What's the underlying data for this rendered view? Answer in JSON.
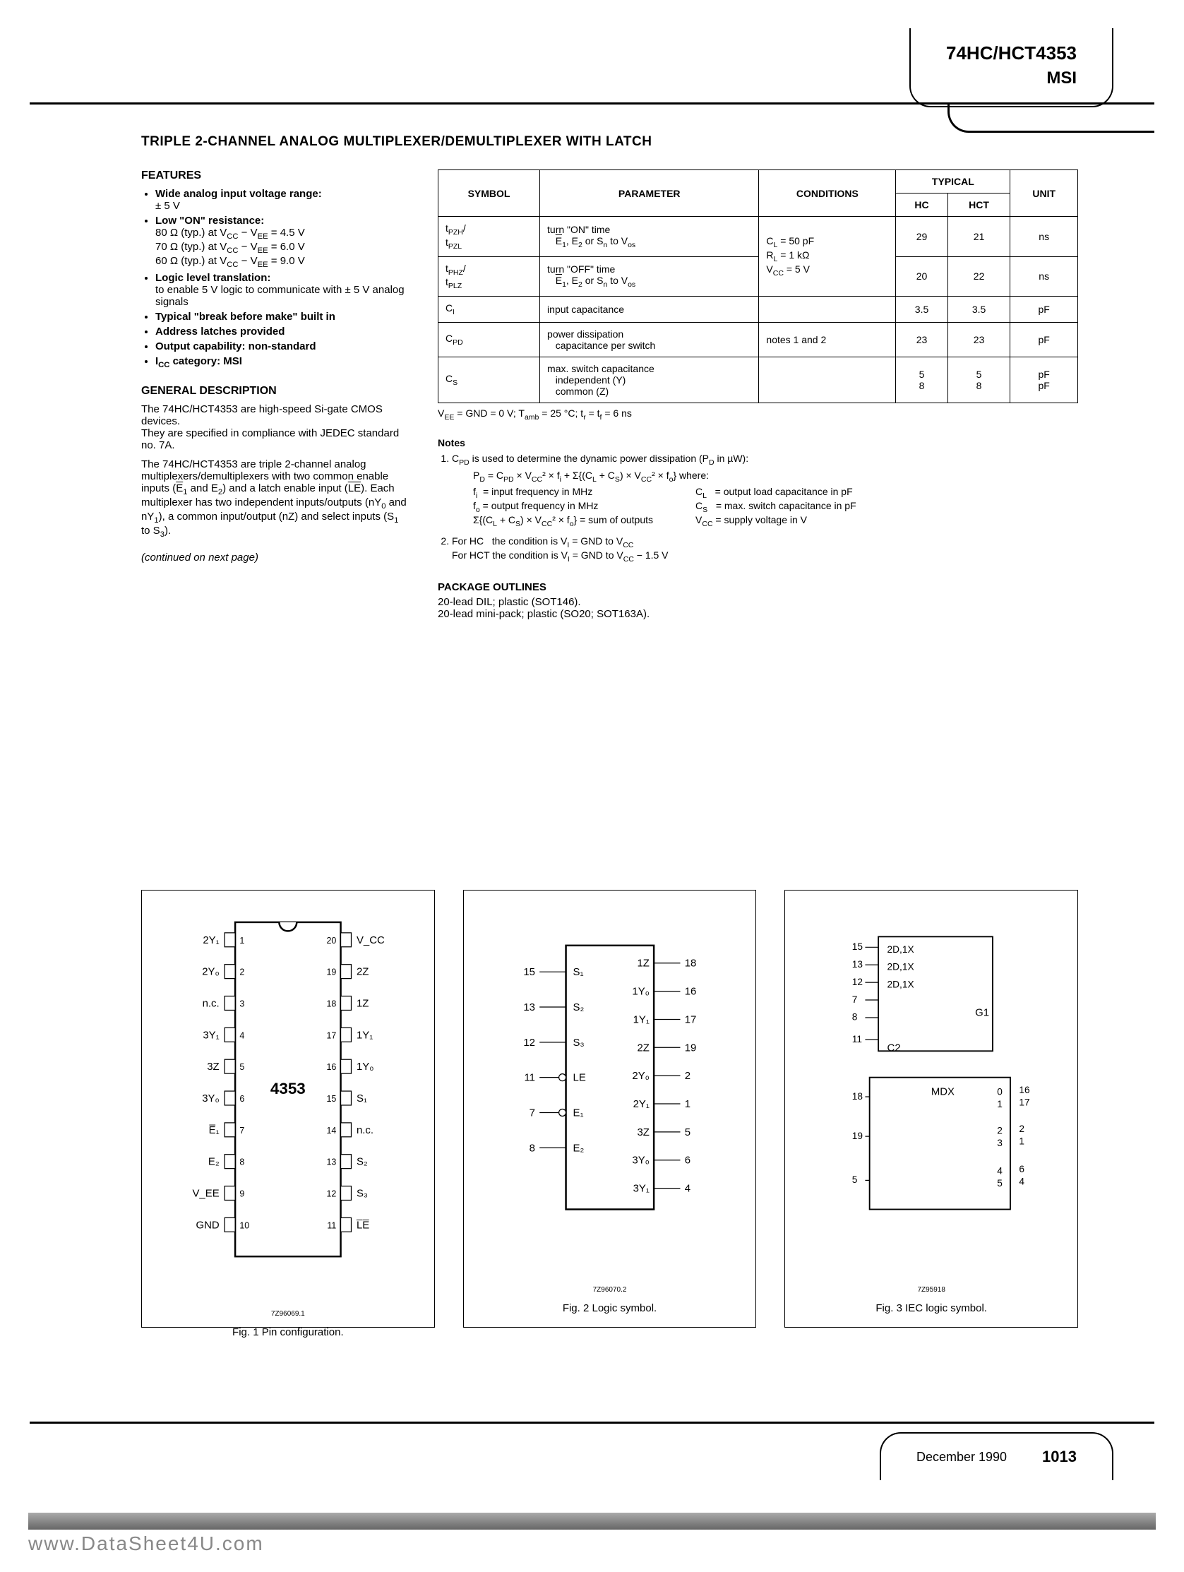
{
  "header": {
    "part": "74HC/HCT4353",
    "sub": "MSI"
  },
  "title": "TRIPLE 2-CHANNEL ANALOG MULTIPLEXER/DEMULTIPLEXER WITH LATCH",
  "features_heading": "FEATURES",
  "features": [
    "Wide analog input voltage range: ± 5 V",
    "Low \"ON\" resistance:\n80 Ω (typ.) at V_CC − V_EE = 4.5 V\n70 Ω (typ.) at V_CC − V_EE = 6.0 V\n60 Ω (typ.) at V_CC − V_EE = 9.0 V",
    "Logic level translation: to enable 5 V logic to communicate with ± 5 V analog signals",
    "Typical \"break before make\" built in",
    "Address latches provided",
    "Output capability: non-standard",
    "I_CC category: MSI"
  ],
  "gendesc_heading": "GENERAL DESCRIPTION",
  "gendesc": [
    "The 74HC/HCT4353 are high-speed Si-gate CMOS devices.\nThey are specified in compliance with JEDEC standard no. 7A.",
    "The 74HC/HCT4353 are triple 2-channel analog multiplexers/demultiplexers with two common enable inputs (E̅₁ and E₂) and a latch enable input (L̅E̅). Each multiplexer has two independent inputs/outputs (nY₀ and nY₁), a common input/output (nZ) and select inputs (S₁ to S₃)."
  ],
  "continued": "(continued on next page)",
  "table": {
    "headers": {
      "symbol": "SYMBOL",
      "parameter": "PARAMETER",
      "conditions": "CONDITIONS",
      "typical": "TYPICAL",
      "hc": "HC",
      "hct": "HCT",
      "unit": "UNIT"
    },
    "rows": [
      {
        "sym": "t_PZH/\nt_PZL",
        "param": "turn \"ON\" time\n   E̅₁, E₂ or Sₙ to V_os",
        "cond": "C_L = 50 pF\nR_L = 1 kΩ\nV_CC = 5 V",
        "hc": "29",
        "hct": "21",
        "unit": "ns",
        "cond_rowspan": 2
      },
      {
        "sym": "t_PHZ/\nt_PLZ",
        "param": "turn \"OFF\" time\n   E̅₁, E₂ or Sₙ to V_os",
        "hc": "20",
        "hct": "22",
        "unit": "ns"
      },
      {
        "sym": "C_I",
        "param": "input capacitance",
        "cond": "",
        "hc": "3.5",
        "hct": "3.5",
        "unit": "pF"
      },
      {
        "sym": "C_PD",
        "param": "power dissipation\n   capacitance per switch",
        "cond": "notes 1 and 2",
        "hc": "23",
        "hct": "23",
        "unit": "pF"
      },
      {
        "sym": "C_S",
        "param": "max. switch capacitance\n   independent (Y)\n   common (Z)",
        "cond": "",
        "hc": "5\n8",
        "hct": "5\n8",
        "unit": "pF\npF"
      }
    ],
    "footnote": "V_EE = GND = 0 V; T_amb = 25 °C; t_r = t_f = 6 ns"
  },
  "notes": {
    "heading": "Notes",
    "n1_intro": "C_PD is used to determine the dynamic power dissipation (P_D in µW):",
    "n1_eq": "P_D = C_PD × V_CC² × f_i + Σ{(C_L + C_S) × V_CC² × f_o} where:",
    "defs_left": [
      "f_i  = input frequency in MHz",
      "f_o = output frequency in MHz",
      "Σ{(C_L + C_S) × V_CC² × f_o} = sum of outputs"
    ],
    "defs_right": [
      "C_L   = output load capacitance in pF",
      "C_S   = max. switch capacitance in pF",
      "V_CC = supply voltage in V"
    ],
    "n2a": "For HC   the condition is V_I = GND to V_CC",
    "n2b": "For HCT the condition is V_I = GND to V_CC − 1.5 V"
  },
  "package": {
    "heading": "PACKAGE OUTLINES",
    "l1": "20-lead DIL; plastic (SOT146).",
    "l2": "20-lead mini-pack; plastic (SO20; SOT163A)."
  },
  "figures": {
    "f1": {
      "caption": "Fig. 1  Pin configuration.",
      "ref": "7Z96069.1",
      "chip_label": "4353",
      "left_pins": [
        "2Y₁",
        "2Y₀",
        "n.c.",
        "3Y₁",
        "3Z",
        "3Y₀",
        "E̅₁",
        "E₂",
        "V_EE",
        "GND"
      ],
      "right_pins": [
        "V_CC",
        "2Z",
        "1Z",
        "1Y₁",
        "1Y₀",
        "S₁",
        "n.c.",
        "S₂",
        "S₃",
        "L̅E̅"
      ]
    },
    "f2": {
      "caption": "Fig. 2  Logic symbol.",
      "ref": "7Z96070.2",
      "left": [
        [
          "15",
          "S₁"
        ],
        [
          "13",
          "S₂"
        ],
        [
          "12",
          "S₃"
        ],
        [
          "11",
          "LE"
        ],
        [
          "7",
          "E₁"
        ],
        [
          "8",
          "E₂"
        ]
      ],
      "right": [
        [
          "1Z",
          "18"
        ],
        [
          "1Y₀",
          "16"
        ],
        [
          "1Y₁",
          "17"
        ],
        [
          "2Z",
          "19"
        ],
        [
          "2Y₀",
          "2"
        ],
        [
          "2Y₁",
          "1"
        ],
        [
          "3Z",
          "5"
        ],
        [
          "3Y₀",
          "6"
        ],
        [
          "3Y₁",
          "4"
        ]
      ]
    },
    "f3": {
      "caption": "Fig. 3  IEC logic symbol.",
      "ref": "7Z95918"
    }
  },
  "footer": {
    "date": "December 1990",
    "page": "1013"
  },
  "watermark": "www.DataSheet4U.com",
  "colors": {
    "rule": "#000000",
    "text": "#000000",
    "bg": "#ffffff",
    "wm": "#888888"
  }
}
